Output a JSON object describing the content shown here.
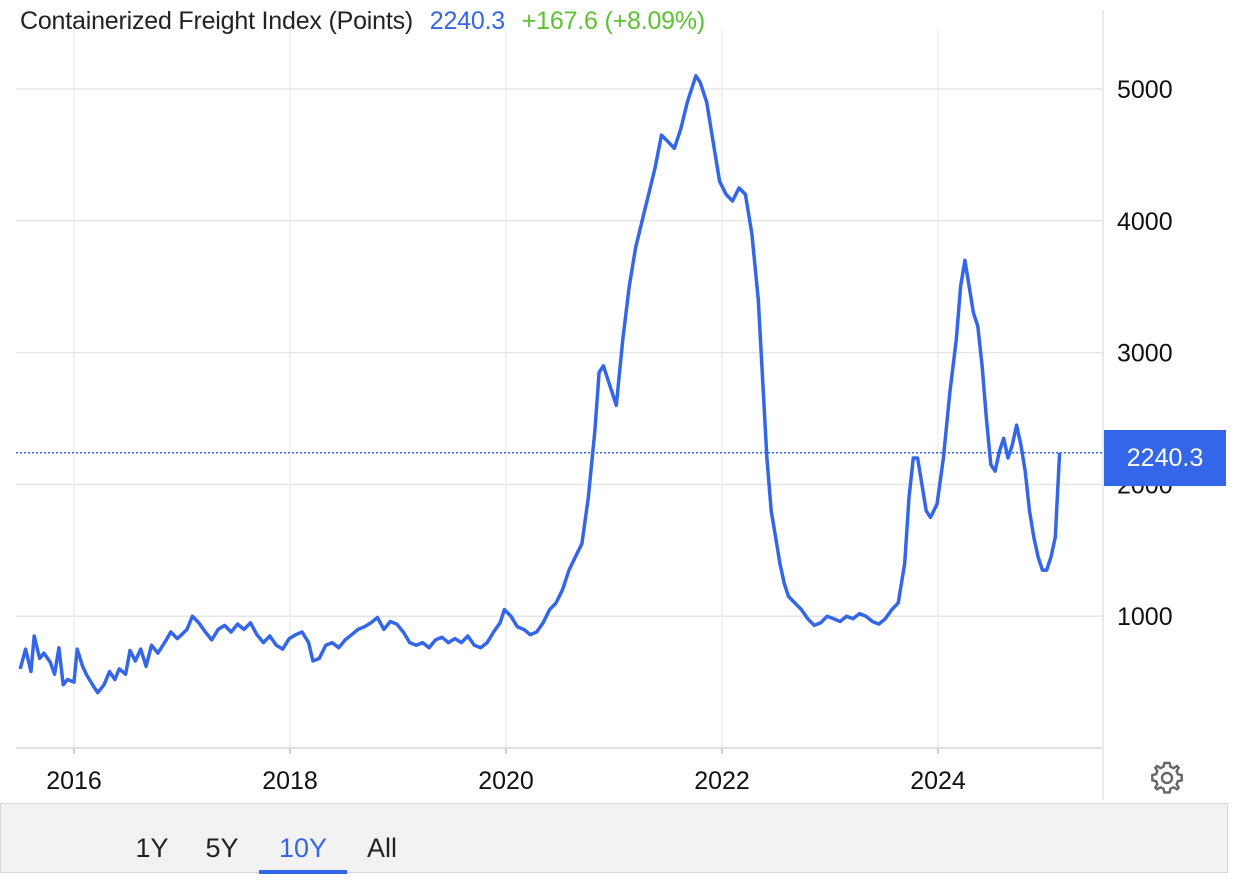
{
  "header": {
    "title": "Containerized Freight Index (Points)",
    "last_value": "2240.3",
    "change": "+167.6 (+8.09%)"
  },
  "colors": {
    "line": "#3366e8",
    "change": "#5cc232",
    "grid": "#e6e6e6"
  },
  "price_tag": "2240.3",
  "range_buttons": [
    {
      "label": "1Y",
      "active": false
    },
    {
      "label": "5Y",
      "active": false
    },
    {
      "label": "10Y",
      "active": true
    },
    {
      "label": "All",
      "active": false
    }
  ],
  "settings_icon": "gear-icon",
  "chart_data": {
    "type": "line",
    "title": "Containerized Freight Index (Points)",
    "xlabel": "",
    "ylabel": "",
    "xlim": [
      2015.5,
      2025.5
    ],
    "ylim": [
      0,
      5000
    ],
    "x_ticks": [
      "2016",
      "2018",
      "2020",
      "2022",
      "2024"
    ],
    "y_ticks": [
      "1000",
      "2000",
      "3000",
      "4000",
      "5000"
    ],
    "grid": true,
    "reference_line": 2240.3,
    "series": [
      {
        "values": [
          [
            2015.5,
            600
          ],
          [
            2015.55,
            750
          ],
          [
            2015.6,
            580
          ],
          [
            2015.63,
            850
          ],
          [
            2015.68,
            680
          ],
          [
            2015.72,
            720
          ],
          [
            2015.78,
            650
          ],
          [
            2015.82,
            560
          ],
          [
            2015.86,
            760
          ],
          [
            2015.9,
            480
          ],
          [
            2015.94,
            520
          ],
          [
            2016.0,
            500
          ],
          [
            2016.03,
            750
          ],
          [
            2016.08,
            620
          ],
          [
            2016.12,
            550
          ],
          [
            2016.18,
            470
          ],
          [
            2016.22,
            420
          ],
          [
            2016.28,
            480
          ],
          [
            2016.33,
            580
          ],
          [
            2016.38,
            520
          ],
          [
            2016.42,
            600
          ],
          [
            2016.48,
            560
          ],
          [
            2016.52,
            740
          ],
          [
            2016.57,
            660
          ],
          [
            2016.62,
            750
          ],
          [
            2016.67,
            620
          ],
          [
            2016.72,
            780
          ],
          [
            2016.78,
            720
          ],
          [
            2016.85,
            810
          ],
          [
            2016.9,
            880
          ],
          [
            2016.96,
            830
          ],
          [
            2017.0,
            860
          ],
          [
            2017.05,
            900
          ],
          [
            2017.1,
            1000
          ],
          [
            2017.16,
            950
          ],
          [
            2017.22,
            880
          ],
          [
            2017.28,
            820
          ],
          [
            2017.34,
            900
          ],
          [
            2017.4,
            930
          ],
          [
            2017.46,
            880
          ],
          [
            2017.52,
            940
          ],
          [
            2017.58,
            900
          ],
          [
            2017.64,
            950
          ],
          [
            2017.7,
            860
          ],
          [
            2017.76,
            800
          ],
          [
            2017.82,
            850
          ],
          [
            2017.88,
            780
          ],
          [
            2017.94,
            750
          ],
          [
            2018.0,
            830
          ],
          [
            2018.06,
            860
          ],
          [
            2018.12,
            880
          ],
          [
            2018.18,
            800
          ],
          [
            2018.22,
            660
          ],
          [
            2018.28,
            680
          ],
          [
            2018.34,
            780
          ],
          [
            2018.4,
            800
          ],
          [
            2018.46,
            760
          ],
          [
            2018.52,
            820
          ],
          [
            2018.58,
            860
          ],
          [
            2018.64,
            900
          ],
          [
            2018.7,
            920
          ],
          [
            2018.76,
            950
          ],
          [
            2018.82,
            990
          ],
          [
            2018.88,
            900
          ],
          [
            2018.94,
            960
          ],
          [
            2019.0,
            940
          ],
          [
            2019.06,
            880
          ],
          [
            2019.12,
            800
          ],
          [
            2019.18,
            780
          ],
          [
            2019.24,
            800
          ],
          [
            2019.3,
            760
          ],
          [
            2019.36,
            820
          ],
          [
            2019.42,
            840
          ],
          [
            2019.48,
            800
          ],
          [
            2019.54,
            830
          ],
          [
            2019.6,
            800
          ],
          [
            2019.66,
            850
          ],
          [
            2019.72,
            780
          ],
          [
            2019.78,
            760
          ],
          [
            2019.84,
            800
          ],
          [
            2019.9,
            880
          ],
          [
            2019.96,
            950
          ],
          [
            2020.0,
            1050
          ],
          [
            2020.06,
            1000
          ],
          [
            2020.12,
            920
          ],
          [
            2020.18,
            900
          ],
          [
            2020.24,
            860
          ],
          [
            2020.3,
            880
          ],
          [
            2020.36,
            950
          ],
          [
            2020.42,
            1050
          ],
          [
            2020.48,
            1100
          ],
          [
            2020.54,
            1200
          ],
          [
            2020.6,
            1350
          ],
          [
            2020.66,
            1450
          ],
          [
            2020.72,
            1550
          ],
          [
            2020.78,
            1900
          ],
          [
            2020.84,
            2400
          ],
          [
            2020.88,
            2850
          ],
          [
            2020.92,
            2900
          ],
          [
            2020.96,
            2800
          ],
          [
            2021.0,
            2700
          ],
          [
            2021.04,
            2600
          ],
          [
            2021.1,
            3100
          ],
          [
            2021.16,
            3500
          ],
          [
            2021.22,
            3800
          ],
          [
            2021.28,
            4000
          ],
          [
            2021.34,
            4200
          ],
          [
            2021.4,
            4400
          ],
          [
            2021.46,
            4650
          ],
          [
            2021.52,
            4600
          ],
          [
            2021.58,
            4550
          ],
          [
            2021.64,
            4700
          ],
          [
            2021.7,
            4900
          ],
          [
            2021.74,
            5000
          ],
          [
            2021.78,
            5100
          ],
          [
            2021.82,
            5050
          ],
          [
            2021.88,
            4900
          ],
          [
            2021.94,
            4600
          ],
          [
            2022.0,
            4300
          ],
          [
            2022.06,
            4200
          ],
          [
            2022.12,
            4150
          ],
          [
            2022.18,
            4250
          ],
          [
            2022.24,
            4200
          ],
          [
            2022.3,
            3900
          ],
          [
            2022.36,
            3400
          ],
          [
            2022.4,
            2800
          ],
          [
            2022.44,
            2200
          ],
          [
            2022.48,
            1800
          ],
          [
            2022.52,
            1600
          ],
          [
            2022.56,
            1400
          ],
          [
            2022.6,
            1250
          ],
          [
            2022.64,
            1150
          ],
          [
            2022.7,
            1100
          ],
          [
            2022.76,
            1050
          ],
          [
            2022.82,
            980
          ],
          [
            2022.88,
            930
          ],
          [
            2022.94,
            950
          ],
          [
            2023.0,
            1000
          ],
          [
            2023.06,
            980
          ],
          [
            2023.12,
            960
          ],
          [
            2023.18,
            1000
          ],
          [
            2023.24,
            980
          ],
          [
            2023.3,
            1020
          ],
          [
            2023.36,
            1000
          ],
          [
            2023.42,
            960
          ],
          [
            2023.48,
            940
          ],
          [
            2023.54,
            980
          ],
          [
            2023.6,
            1050
          ],
          [
            2023.66,
            1100
          ],
          [
            2023.72,
            1400
          ],
          [
            2023.76,
            1900
          ],
          [
            2023.8,
            2200
          ],
          [
            2023.84,
            2200
          ],
          [
            2023.88,
            2000
          ],
          [
            2023.92,
            1800
          ],
          [
            2023.96,
            1750
          ],
          [
            2024.02,
            1850
          ],
          [
            2024.08,
            2200
          ],
          [
            2024.14,
            2700
          ],
          [
            2024.2,
            3100
          ],
          [
            2024.24,
            3500
          ],
          [
            2024.28,
            3700
          ],
          [
            2024.32,
            3500
          ],
          [
            2024.36,
            3300
          ],
          [
            2024.4,
            3200
          ],
          [
            2024.44,
            2900
          ],
          [
            2024.48,
            2500
          ],
          [
            2024.52,
            2150
          ],
          [
            2024.56,
            2100
          ],
          [
            2024.6,
            2250
          ],
          [
            2024.64,
            2350
          ],
          [
            2024.68,
            2200
          ],
          [
            2024.72,
            2300
          ],
          [
            2024.76,
            2450
          ],
          [
            2024.8,
            2300
          ],
          [
            2024.84,
            2100
          ],
          [
            2024.88,
            1800
          ],
          [
            2024.92,
            1600
          ],
          [
            2024.96,
            1450
          ],
          [
            2025.0,
            1350
          ],
          [
            2025.04,
            1350
          ],
          [
            2025.08,
            1450
          ],
          [
            2025.12,
            1600
          ],
          [
            2025.16,
            2240
          ]
        ]
      }
    ]
  }
}
